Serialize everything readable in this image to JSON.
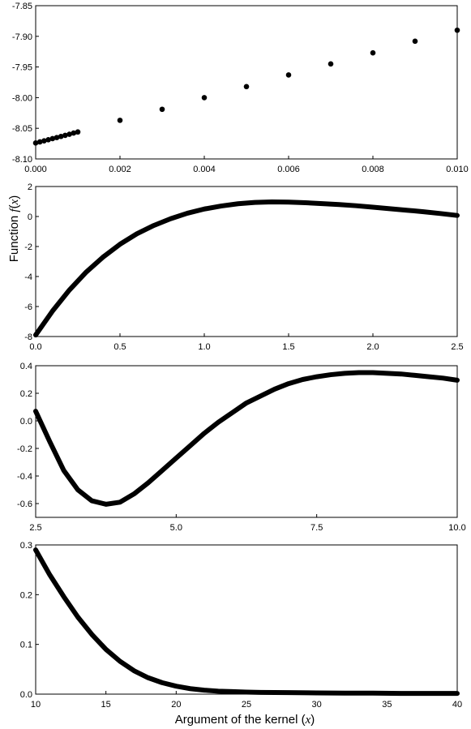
{
  "figure": {
    "ylabel_prefix": "Function ",
    "ylabel_var": "f",
    "ylabel_arg": "x",
    "xlabel_prefix": "Argument of the kernel ",
    "xlabel_var": "x"
  },
  "chart_data": [
    {
      "type": "scatter",
      "xlim": [
        0.0,
        0.01
      ],
      "ylim": [
        -8.1,
        -7.85
      ],
      "xticks": [
        0.0,
        0.002,
        0.004,
        0.006,
        0.008,
        0.01
      ],
      "xtick_labels": [
        "0.000",
        "0.002",
        "0.004",
        "0.006",
        "0.008",
        "0.010"
      ],
      "yticks": [
        -8.1,
        -8.05,
        -8.0,
        -7.95,
        -7.9,
        -7.85
      ],
      "ytick_labels": [
        "-8.10",
        "-8.05",
        "-8.00",
        "-7.95",
        "-7.90",
        "-7.85"
      ],
      "x": [
        0.0,
        0.0001,
        0.0002,
        0.0003,
        0.0004,
        0.0005,
        0.0006,
        0.0007,
        0.0008,
        0.0009,
        0.001,
        0.002,
        0.003,
        0.004,
        0.005,
        0.006,
        0.007,
        0.008,
        0.009,
        0.01
      ],
      "y": [
        -8.074,
        -8.0722,
        -8.0705,
        -8.0687,
        -8.0669,
        -8.0651,
        -8.0633,
        -8.0615,
        -8.0597,
        -8.0578,
        -8.056,
        -8.037,
        -8.019,
        -8.0,
        -7.982,
        -7.963,
        -7.945,
        -7.927,
        -7.908,
        -7.89
      ],
      "grid": false,
      "legend": "none"
    },
    {
      "type": "line",
      "xlim": [
        0.0,
        2.5
      ],
      "ylim": [
        -8,
        2
      ],
      "xticks": [
        0.0,
        0.5,
        1.0,
        1.5,
        2.0,
        2.5
      ],
      "xtick_labels": [
        "0.0",
        "0.5",
        "1.0",
        "1.5",
        "2.0",
        "2.5"
      ],
      "yticks": [
        -8,
        -6,
        -4,
        -2,
        0,
        2
      ],
      "ytick_labels": [
        "-8",
        "-6",
        "-4",
        "-2",
        "0",
        "2"
      ],
      "x": [
        0.0,
        0.1,
        0.2,
        0.3,
        0.4,
        0.5,
        0.6,
        0.7,
        0.8,
        0.9,
        1.0,
        1.1,
        1.2,
        1.3,
        1.4,
        1.5,
        1.6,
        1.7,
        1.8,
        1.9,
        2.0,
        2.1,
        2.2,
        2.3,
        2.4,
        2.5
      ],
      "y": [
        -7.9,
        -6.3,
        -4.9,
        -3.7,
        -2.7,
        -1.85,
        -1.15,
        -0.6,
        -0.15,
        0.22,
        0.5,
        0.7,
        0.85,
        0.94,
        0.97,
        0.96,
        0.92,
        0.86,
        0.8,
        0.72,
        0.62,
        0.52,
        0.42,
        0.32,
        0.2,
        0.07
      ],
      "grid": false,
      "legend": "none"
    },
    {
      "type": "line",
      "xlim": [
        2.5,
        10.0
      ],
      "ylim": [
        -0.7,
        0.4
      ],
      "xticks": [
        2.5,
        5.0,
        7.5,
        10.0
      ],
      "xtick_labels": [
        "2.5",
        "5.0",
        "7.5",
        "10.0"
      ],
      "yticks": [
        -0.6,
        -0.4,
        -0.2,
        0.0,
        0.2,
        0.4
      ],
      "ytick_labels": [
        "-0.6",
        "-0.4",
        "-0.2",
        "0.0",
        "0.2",
        "0.4"
      ],
      "x": [
        2.5,
        2.75,
        3.0,
        3.25,
        3.5,
        3.75,
        4.0,
        4.25,
        4.5,
        4.75,
        5.0,
        5.25,
        5.5,
        5.75,
        6.0,
        6.25,
        6.5,
        6.75,
        7.0,
        7.25,
        7.5,
        7.75,
        8.0,
        8.25,
        8.5,
        8.75,
        9.0,
        9.25,
        9.5,
        9.75,
        10.0
      ],
      "y": [
        0.07,
        -0.15,
        -0.36,
        -0.5,
        -0.58,
        -0.605,
        -0.59,
        -0.53,
        -0.45,
        -0.36,
        -0.27,
        -0.18,
        -0.09,
        -0.01,
        0.06,
        0.13,
        0.18,
        0.23,
        0.27,
        0.3,
        0.32,
        0.335,
        0.345,
        0.35,
        0.35,
        0.345,
        0.34,
        0.33,
        0.32,
        0.31,
        0.295
      ],
      "grid": false,
      "legend": "none"
    },
    {
      "type": "line",
      "xlim": [
        10,
        40
      ],
      "ylim": [
        0.0,
        0.3
      ],
      "xticks": [
        10,
        15,
        20,
        25,
        30,
        35,
        40
      ],
      "xtick_labels": [
        "10",
        "15",
        "20",
        "25",
        "30",
        "35",
        "40"
      ],
      "yticks": [
        0.0,
        0.1,
        0.2,
        0.3
      ],
      "ytick_labels": [
        "0.0",
        "0.1",
        "0.2",
        "0.3"
      ],
      "x": [
        10,
        11,
        12,
        13,
        14,
        15,
        16,
        17,
        18,
        19,
        20,
        21,
        22,
        23,
        24,
        25,
        26,
        28,
        30,
        32,
        34,
        36,
        38,
        40
      ],
      "y": [
        0.29,
        0.24,
        0.196,
        0.155,
        0.12,
        0.09,
        0.066,
        0.047,
        0.033,
        0.023,
        0.016,
        0.011,
        0.008,
        0.006,
        0.005,
        0.004,
        0.0035,
        0.003,
        0.0025,
        0.002,
        0.002,
        0.0015,
        0.0015,
        0.0015
      ],
      "grid": false,
      "legend": "none"
    }
  ]
}
